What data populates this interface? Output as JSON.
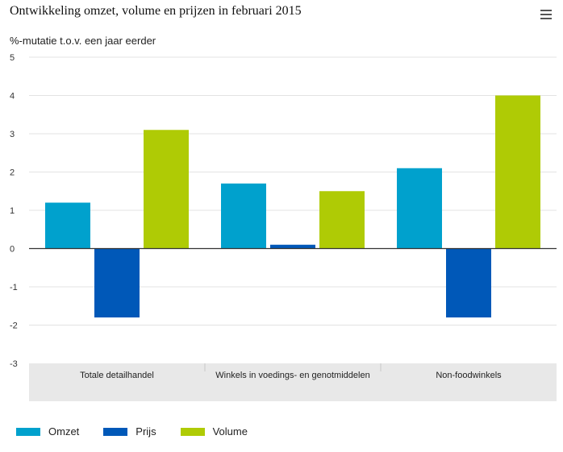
{
  "chart_data": {
    "type": "bar",
    "title": "Ontwikkeling omzet, volume en prijzen in februari 2015",
    "ylabel": "%-mutatie t.o.v. een jaar eerder",
    "xlabel": "",
    "categories": [
      "Totale detailhandel",
      "Winkels in voedings- en genotmiddelen",
      "Non-foodwinkels"
    ],
    "series": [
      {
        "name": "Omzet",
        "color": "#00a1cd",
        "values": [
          1.2,
          1.7,
          2.1
        ]
      },
      {
        "name": "Prijs",
        "color": "#0058b8",
        "values": [
          -1.8,
          0.1,
          -1.8
        ]
      },
      {
        "name": "Volume",
        "color": "#afcb05",
        "values": [
          3.1,
          1.5,
          4.0
        ]
      }
    ],
    "ylim": [
      -3,
      5
    ],
    "yticks": [
      5,
      4,
      3,
      2,
      1,
      0,
      -1,
      -2,
      -3
    ],
    "grid": true,
    "legend_position": "bottom-left"
  },
  "menu_icon": "hamburger-menu-icon"
}
